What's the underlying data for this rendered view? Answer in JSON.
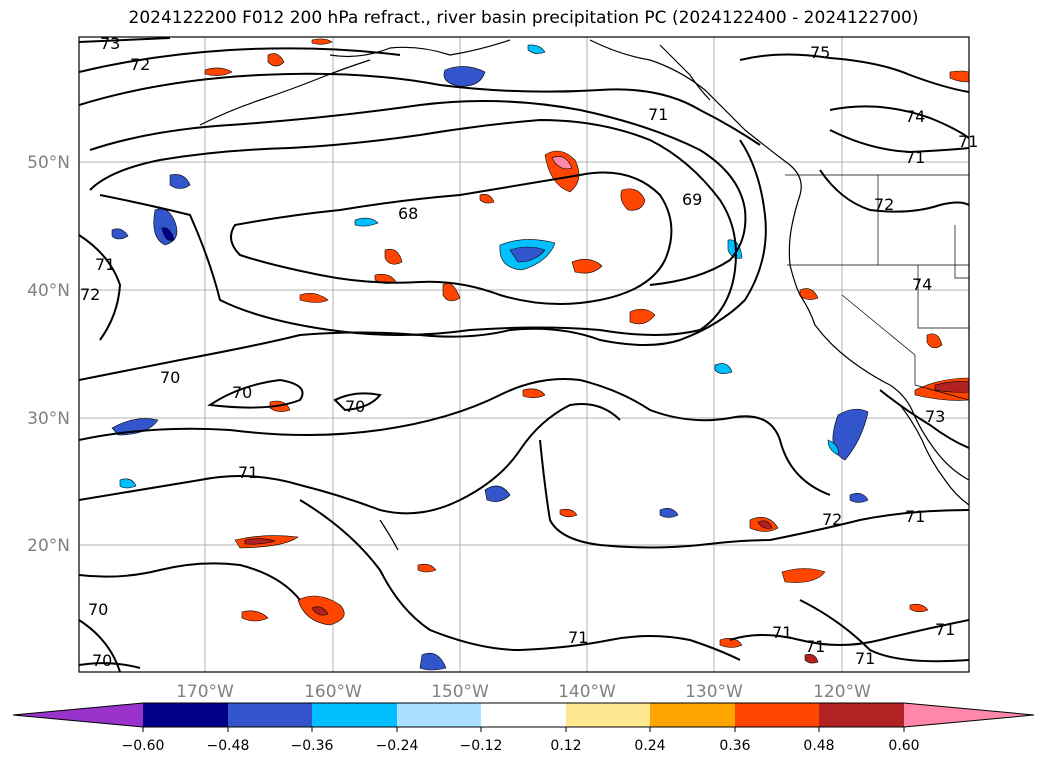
{
  "title": "2024122200 F012 200 hPa refract., river basin precipitation PC (2024122400 - 2024122700)",
  "map": {
    "lat_labels": [
      "50°N",
      "40°N",
      "30°N",
      "20°N"
    ],
    "lon_labels": [
      "170°W",
      "160°W",
      "150°W",
      "140°W",
      "130°W",
      "120°W"
    ],
    "contour_labels": [
      "73",
      "72",
      "75",
      "74",
      "71",
      "71",
      "68",
      "69",
      "71",
      "72",
      "74",
      "71",
      "72",
      "70",
      "70",
      "70",
      "71",
      "72",
      "71",
      "73",
      "70",
      "70",
      "71",
      "71",
      "71",
      "71",
      "71"
    ]
  },
  "colorbar": {
    "colors": [
      "#9933cc",
      "#00008b",
      "#3355cc",
      "#00bfff",
      "#aadfff",
      "#ffffff",
      "#ffe990",
      "#ffa500",
      "#ff4500",
      "#b22222",
      "#ff88aa"
    ],
    "ticks": [
      "−0.60",
      "−0.48",
      "−0.36",
      "−0.24",
      "−0.12",
      "0.12",
      "0.24",
      "0.36",
      "0.48",
      "0.60"
    ]
  }
}
